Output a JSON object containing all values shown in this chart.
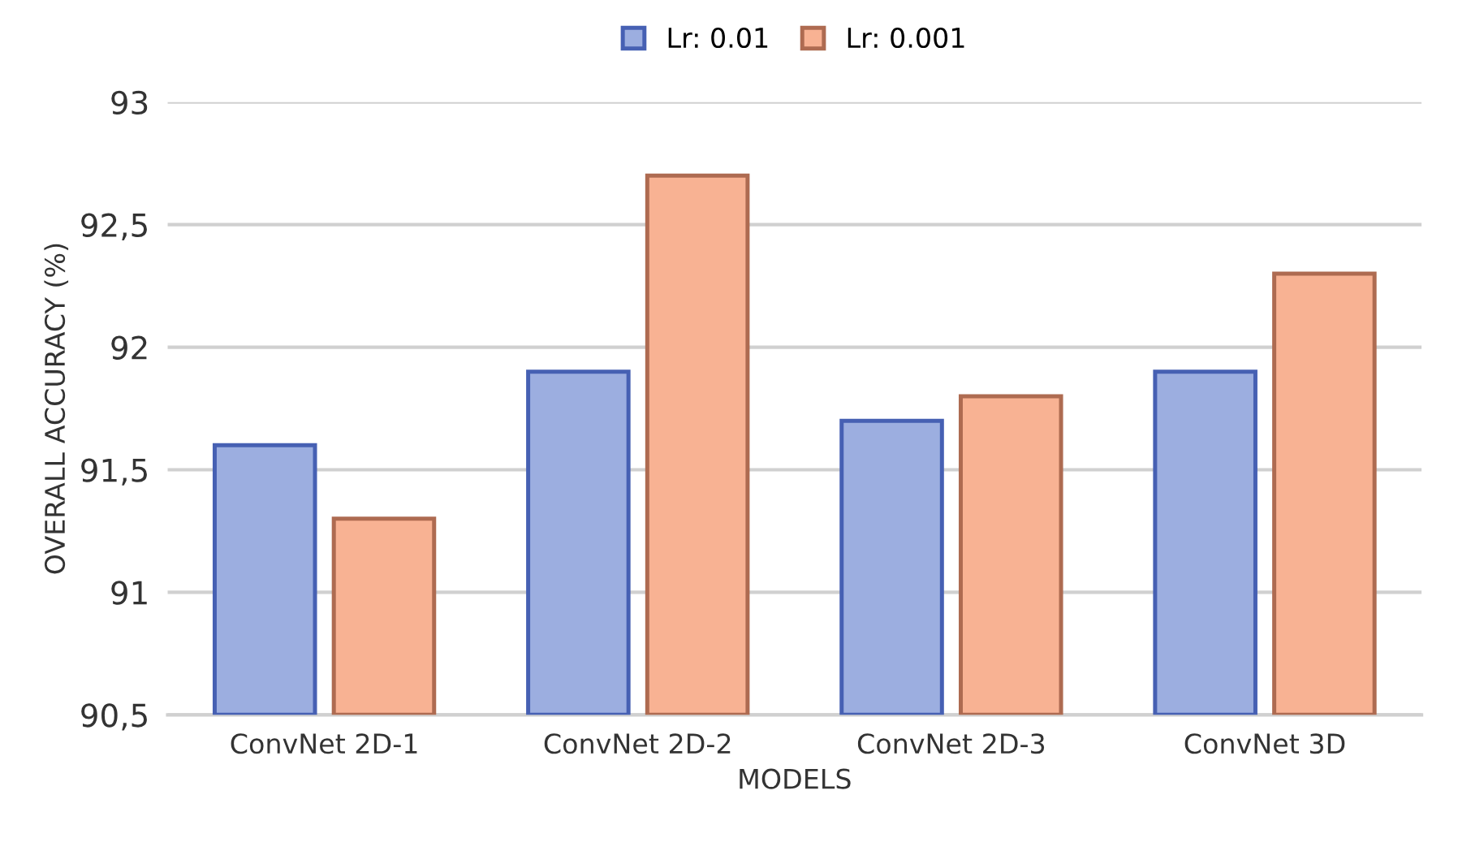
{
  "chart_data": {
    "type": "bar",
    "xlabel": "MODELS",
    "ylabel": "OVERALL ACCURACY (%)",
    "categories": [
      "ConvNet 2D-1",
      "ConvNet 2D-2",
      "ConvNet 2D-3",
      "ConvNet 3D"
    ],
    "series": [
      {
        "name": "Lr: 0.01",
        "color": "#9caee0",
        "values": [
          91.6,
          91.9,
          91.7,
          91.9
        ]
      },
      {
        "name": "Lr: 0.001",
        "color": "#f8b293",
        "values": [
          91.3,
          92.7,
          91.8,
          92.3
        ]
      }
    ],
    "ylim": [
      90.5,
      93
    ],
    "yticks": [
      {
        "value": 90.5,
        "label": "90,5"
      },
      91,
      {
        "value": 91.5,
        "label": "91,5"
      },
      92,
      {
        "value": 92.5,
        "label": "92,5"
      },
      93
    ],
    "grid": "y",
    "legend": "top"
  }
}
